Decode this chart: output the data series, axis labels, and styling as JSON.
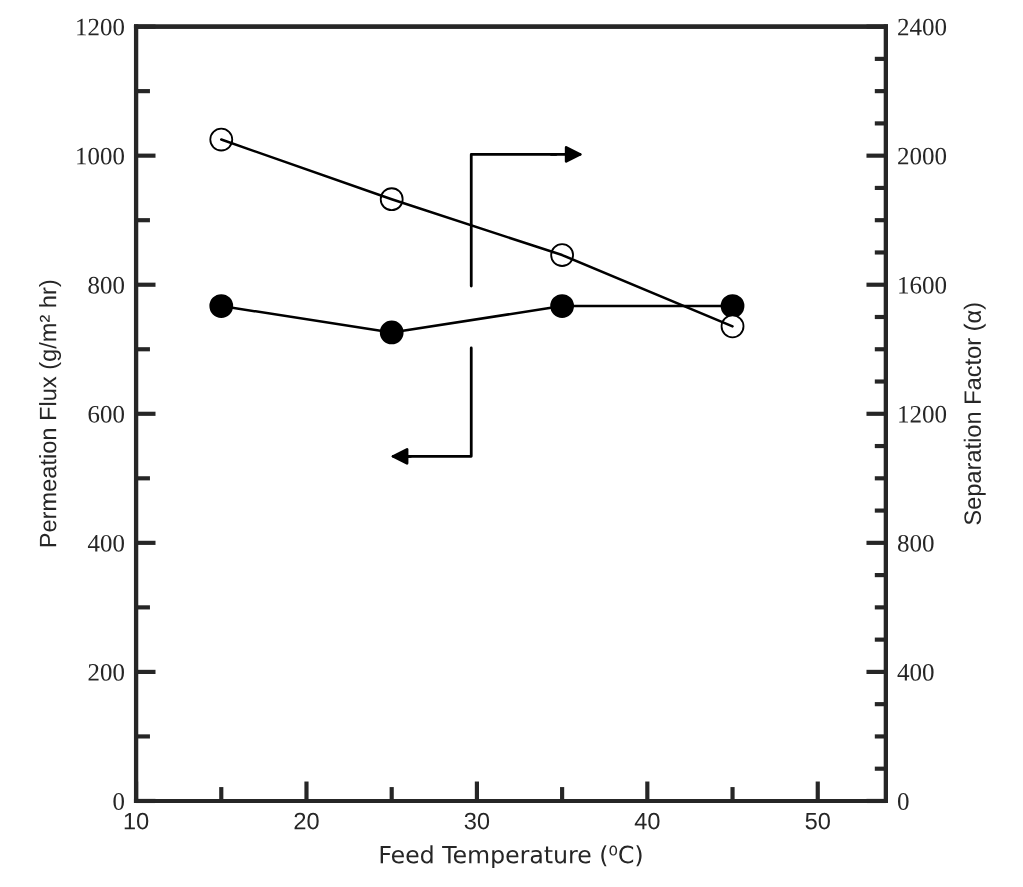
{
  "chart_data": {
    "type": "line",
    "xlabel": "Feed Temperature (⁰C)",
    "ylabel": "Permeation Flux (g/m² hr)",
    "y2label": "Separation Factor (α)",
    "x": [
      15,
      25,
      35,
      45
    ],
    "series": [
      {
        "color": "#000000",
        "values": [
          767,
          726,
          767,
          767
        ],
        "marker": "circle",
        "colors": [
          "#000000",
          "#000000",
          "#000000",
          "#000000"
        ]
      },
      {
        "color": "#000000",
        "values": [
          2050,
          1865,
          1692,
          1471
        ],
        "marker": "circle",
        "colors": [
          "#ffffff",
          "#ffffff",
          "#ffffff",
          "#ffffff"
        ],
        "axis": "y2"
      }
    ],
    "xlim": [
      10,
      54
    ],
    "xticks": [
      10,
      {
        "value": 15,
        "label": null
      },
      20,
      {
        "value": 25,
        "label": null
      },
      30,
      {
        "value": 35,
        "label": null
      },
      40,
      {
        "value": 45,
        "label": null
      },
      50
    ],
    "ylim": [
      0,
      1200
    ],
    "yticks": [
      0,
      {
        "value": 100,
        "label": null
      },
      200,
      {
        "value": 300,
        "label": null
      },
      400,
      {
        "value": 500,
        "label": null
      },
      600,
      {
        "value": 700,
        "label": null
      },
      800,
      {
        "value": 900,
        "label": null
      },
      1000,
      {
        "value": 1100,
        "label": null
      },
      1200
    ],
    "y2lim": [
      0,
      2400
    ],
    "y2ticks": [
      0,
      {
        "value": 100,
        "label": null
      },
      {
        "value": 200,
        "label": null
      },
      {
        "value": 300,
        "label": null
      },
      400,
      {
        "value": 500,
        "label": null
      },
      {
        "value": 600,
        "label": null
      },
      {
        "value": 700,
        "label": null
      },
      800,
      {
        "value": 900,
        "label": null
      },
      {
        "value": 1000,
        "label": null
      },
      {
        "value": 1100,
        "label": null
      },
      1200,
      {
        "value": 1300,
        "label": null
      },
      {
        "value": 1400,
        "label": null
      },
      {
        "value": 1500,
        "label": null
      },
      1600,
      {
        "value": 1700,
        "label": null
      },
      {
        "value": 1800,
        "label": null
      },
      {
        "value": 1900,
        "label": null
      },
      2000,
      {
        "value": 2100,
        "label": null
      },
      {
        "value": 2200,
        "label": null
      },
      {
        "value": 2300,
        "label": null
      },
      2400
    ],
    "grid": false,
    "legend": false
  }
}
